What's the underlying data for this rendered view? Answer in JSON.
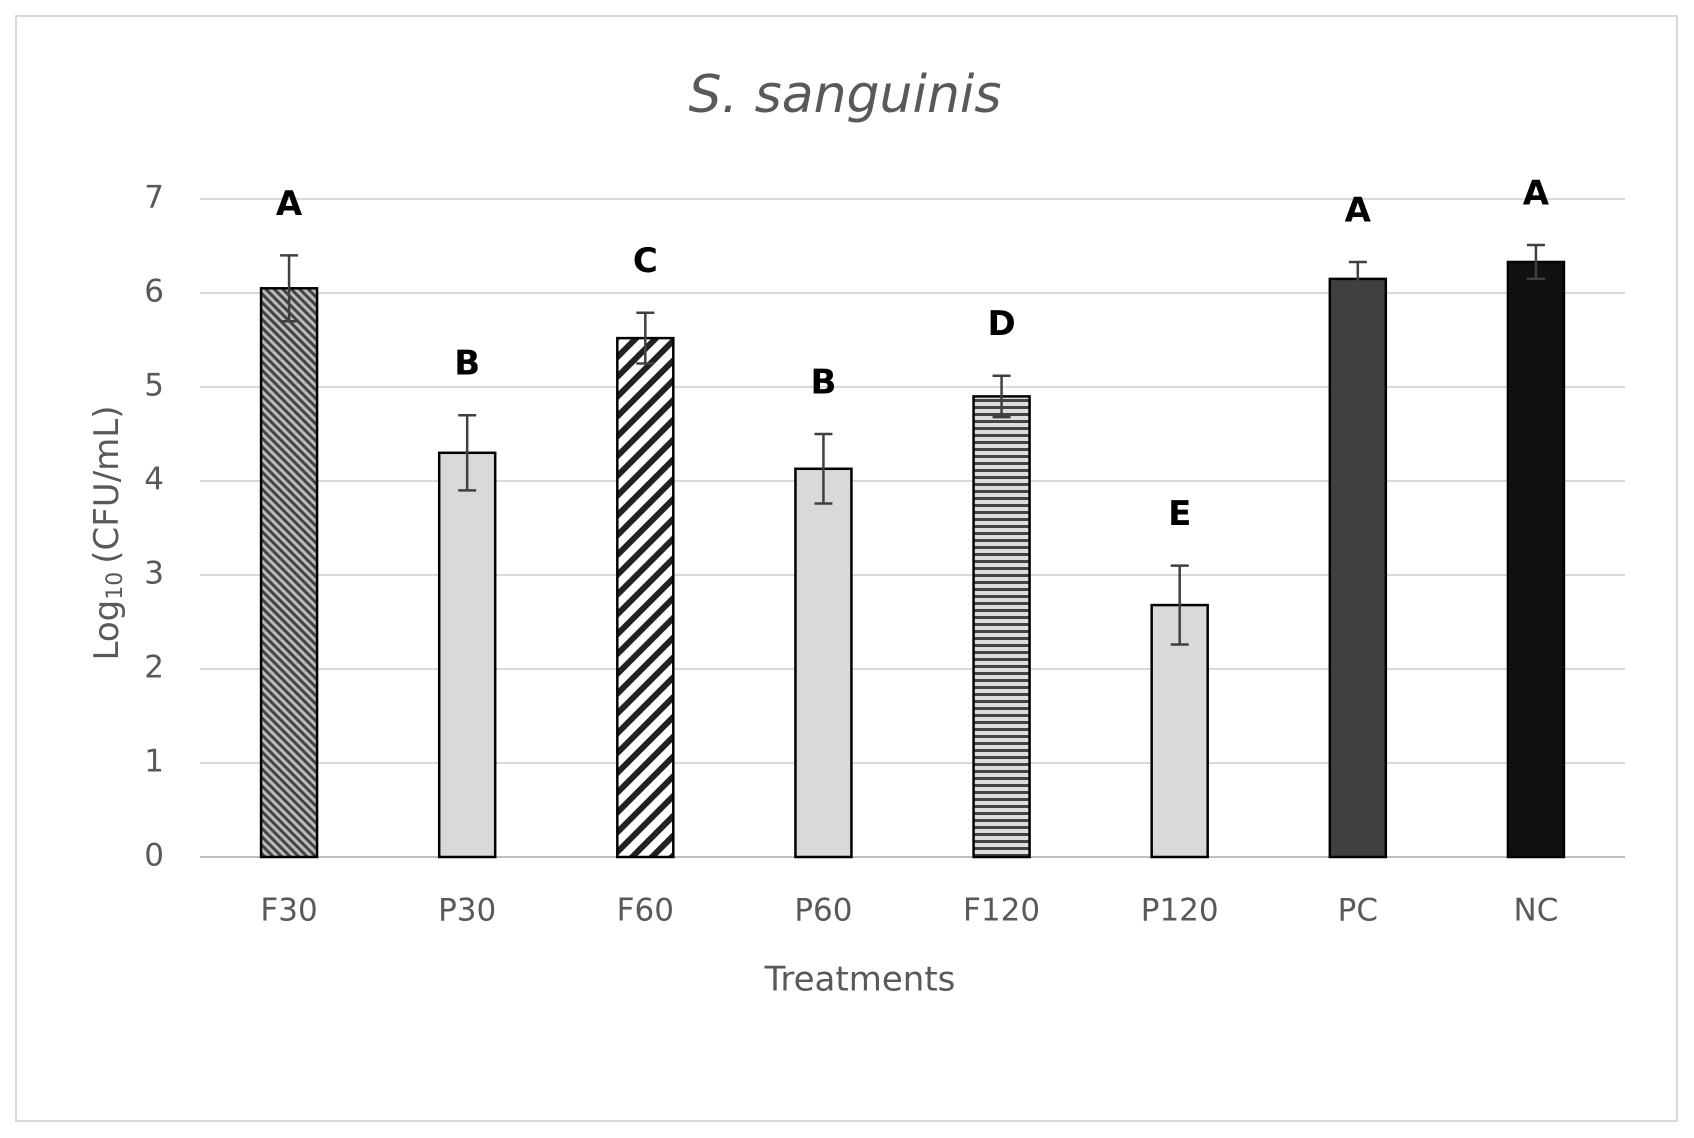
{
  "chart_data": {
    "type": "bar",
    "title": "S. sanguinis",
    "x_label": "Treatments",
    "y_label": {
      "base": "Log",
      "subscript": "10",
      "unit": "(CFU/mL)"
    },
    "categories": [
      "F30",
      "P30",
      "F60",
      "P60",
      "F120",
      "P120",
      "PC",
      "NC"
    ],
    "values": [
      6.05,
      4.3,
      5.52,
      4.13,
      4.9,
      2.68,
      6.15,
      6.33
    ],
    "errors": [
      0.35,
      0.4,
      0.27,
      0.37,
      0.22,
      0.42,
      0.18,
      0.18
    ],
    "letters": [
      "A",
      "B",
      "C",
      "B",
      "D",
      "E",
      "A",
      "A"
    ],
    "colors": [
      "#444444",
      "#d9d9d9",
      "#222222",
      "#d9d9d9",
      "#444444",
      "#d9d9d9",
      "#404040",
      "#111111"
    ],
    "patterns": [
      "dense-diagonal",
      "solid",
      "wide-diagonal",
      "solid",
      "horizontal",
      "solid",
      "solid",
      "solid"
    ],
    "ylim": [
      0,
      7
    ],
    "yticks": [
      0,
      1,
      2,
      3,
      4,
      5,
      6,
      7
    ],
    "grid": true
  }
}
